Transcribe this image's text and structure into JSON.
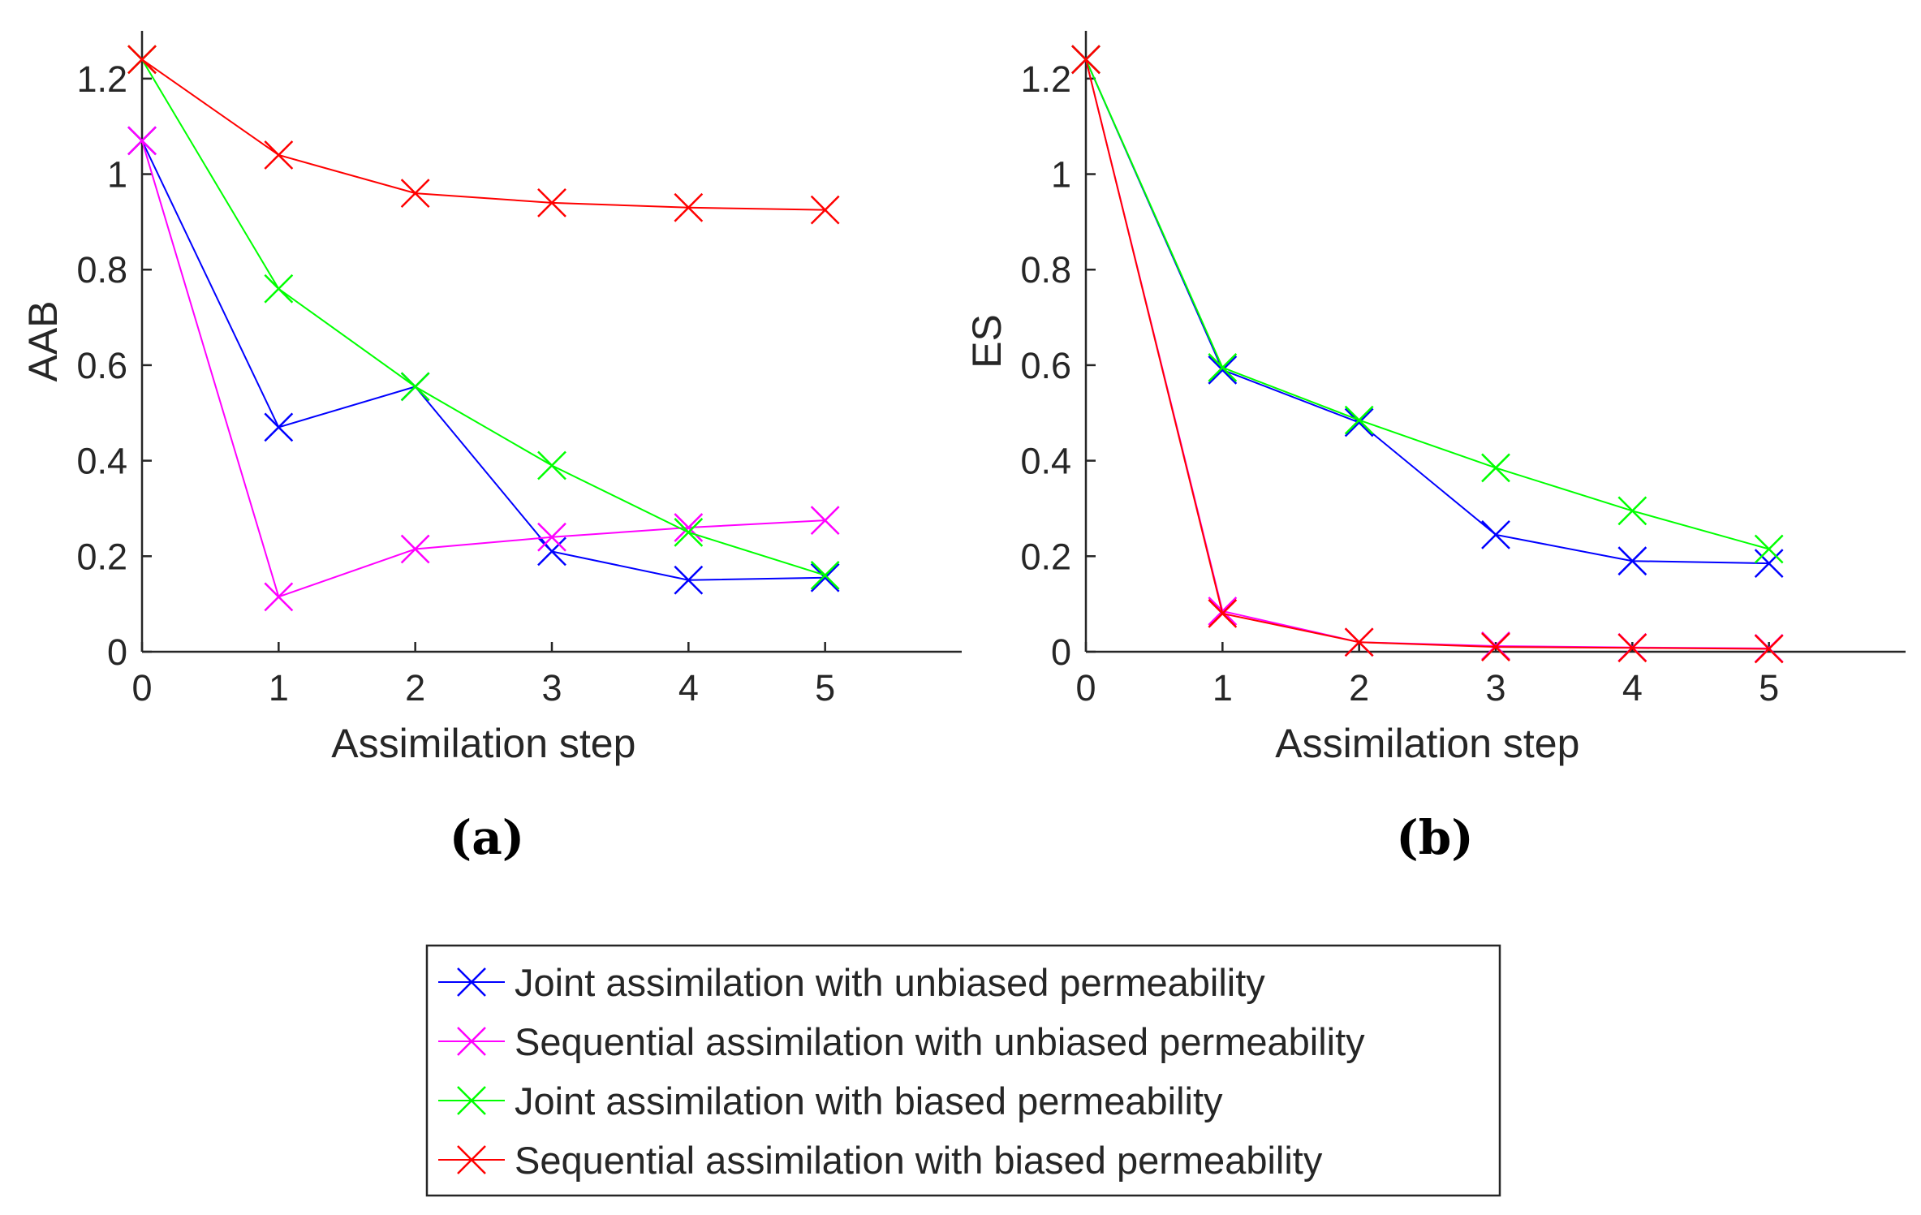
{
  "chart_data": [
    {
      "type": "line",
      "panel": "(a)",
      "ylabel": "AAB",
      "xlabel": "Assimilation step",
      "xlim": [
        0,
        6
      ],
      "ylim": [
        0,
        1.3
      ],
      "xticks": [
        0,
        1,
        2,
        3,
        4,
        5
      ],
      "yticks": [
        0,
        0.2,
        0.4,
        0.6,
        0.8,
        1,
        1.2
      ],
      "ytick_labels": [
        "0",
        "0.2",
        "0.4",
        "0.6",
        "0.8",
        "1",
        "1.2"
      ],
      "grid": false,
      "x": [
        0,
        1,
        2,
        3,
        4,
        5
      ],
      "series": [
        {
          "name": "Joint assimilation with unbiased permeability",
          "color": "#0000ff",
          "marker": "x",
          "values": [
            1.07,
            0.47,
            0.555,
            0.21,
            0.15,
            0.155
          ]
        },
        {
          "name": "Sequential assimilation with unbiased permeability",
          "color": "#ff00ff",
          "marker": "x",
          "values": [
            1.07,
            0.115,
            0.215,
            0.24,
            0.26,
            0.275
          ]
        },
        {
          "name": "Joint assimilation with biased permeability",
          "color": "#00ff00",
          "marker": "x",
          "values": [
            1.24,
            0.76,
            0.555,
            0.39,
            0.25,
            0.16
          ]
        },
        {
          "name": "Sequential assimilation with biased permeability",
          "color": "#ff0000",
          "marker": "x",
          "values": [
            1.24,
            1.04,
            0.96,
            0.94,
            0.93,
            0.925
          ]
        }
      ]
    },
    {
      "type": "line",
      "panel": "(b)",
      "ylabel": "ES",
      "xlabel": "Assimilation step",
      "xlim": [
        0,
        6
      ],
      "ylim": [
        0,
        1.3
      ],
      "xticks": [
        0,
        1,
        2,
        3,
        4,
        5
      ],
      "yticks": [
        0,
        0.2,
        0.4,
        0.6,
        0.8,
        1,
        1.2
      ],
      "ytick_labels": [
        "0",
        "0.2",
        "0.4",
        "0.6",
        "0.8",
        "1",
        "1.2"
      ],
      "grid": false,
      "x": [
        0,
        1,
        2,
        3,
        4,
        5
      ],
      "series": [
        {
          "name": "Joint assimilation with unbiased permeability",
          "color": "#0000ff",
          "marker": "x",
          "values": [
            1.24,
            0.59,
            0.48,
            0.245,
            0.19,
            0.185
          ]
        },
        {
          "name": "Sequential assimilation with unbiased permeability",
          "color": "#ff00ff",
          "marker": "x",
          "values": [
            1.24,
            0.085,
            0.02,
            0.012,
            0.009,
            0.007
          ]
        },
        {
          "name": "Joint assimilation with biased permeability",
          "color": "#00ff00",
          "marker": "x",
          "values": [
            1.24,
            0.595,
            0.485,
            0.385,
            0.295,
            0.215
          ]
        },
        {
          "name": "Sequential assimilation with biased permeability",
          "color": "#ff0000",
          "marker": "x",
          "values": [
            1.24,
            0.08,
            0.02,
            0.01,
            0.008,
            0.006
          ]
        }
      ]
    }
  ],
  "legend": {
    "placement": "bottom-center",
    "entries": [
      {
        "label": "Joint assimilation with unbiased permeability",
        "color": "#0000ff"
      },
      {
        "label": "Sequential assimilation with unbiased permeability",
        "color": "#ff00ff"
      },
      {
        "label": "Joint assimilation with biased permeability",
        "color": "#00ff00"
      },
      {
        "label": "Sequential assimilation with biased permeability",
        "color": "#ff0000"
      }
    ]
  }
}
